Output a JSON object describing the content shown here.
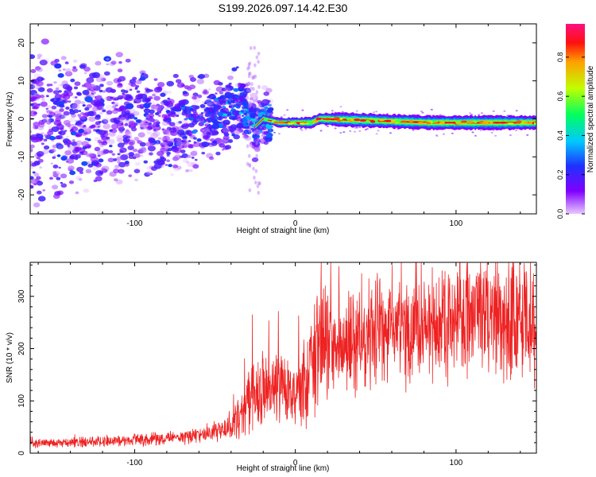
{
  "title": "S199.2026.097.14.42.E30",
  "chart_data": [
    {
      "type": "heatmap",
      "xlabel": "Height of straight line (km)",
      "ylabel": "Frequency (Hz)",
      "xlim": [
        -165,
        150
      ],
      "ylim": [
        -25,
        25
      ],
      "xticks": [
        -100,
        0,
        100
      ],
      "yticks": [
        -20,
        -10,
        0,
        10,
        20
      ],
      "colorbar": {
        "label": "Normalized spectral amplitude",
        "range": [
          0,
          0.97
        ],
        "ticks": [
          0.0,
          0.2,
          0.4,
          0.6,
          0.8
        ]
      },
      "ridge": [
        {
          "x": -60,
          "y": -1
        },
        {
          "x": -50,
          "y": 1
        },
        {
          "x": -35,
          "y": 4
        },
        {
          "x": -25,
          "y": -2
        },
        {
          "x": -20,
          "y": 0
        },
        {
          "x": -10,
          "y": -1
        },
        {
          "x": 0,
          "y": -1
        },
        {
          "x": 10,
          "y": -1
        },
        {
          "x": 15,
          "y": 0
        },
        {
          "x": 50,
          "y": -0.5
        },
        {
          "x": 85,
          "y": -1
        },
        {
          "x": 150,
          "y": -1
        }
      ]
    },
    {
      "type": "line",
      "xlabel": "Height of straight line (km)",
      "ylabel": "SNR (10 * v/v)",
      "xlim": [
        -165,
        150
      ],
      "ylim": [
        0,
        365
      ],
      "xticks": [
        -100,
        0,
        100
      ],
      "yticks": [
        0,
        100,
        200,
        300
      ],
      "series": [
        {
          "name": "SNR",
          "color": "#ee2222",
          "x": [
            -165,
            -140,
            -120,
            -100,
            -80,
            -60,
            -45,
            -35,
            -28,
            -20,
            -12,
            -5,
            0,
            5,
            10,
            15,
            25,
            40,
            60,
            80,
            100,
            115,
            125,
            135,
            150
          ],
          "y": [
            18,
            20,
            22,
            25,
            28,
            35,
            45,
            70,
            110,
            120,
            130,
            110,
            100,
            130,
            165,
            200,
            210,
            220,
            240,
            240,
            260,
            265,
            275,
            265,
            255
          ]
        }
      ]
    }
  ]
}
